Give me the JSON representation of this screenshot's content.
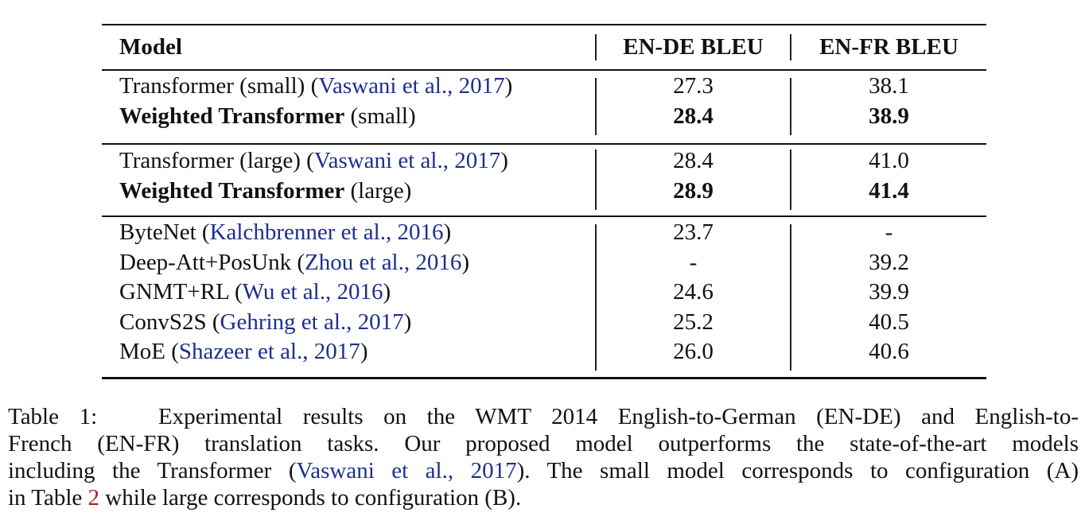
{
  "table": {
    "headers": {
      "model": "Model",
      "ende": "EN-DE BLEU",
      "enfr": "EN-FR BLEU"
    },
    "groups": [
      [
        {
          "model": "Transformer (small)",
          "model_bold": false,
          "cite": "Vaswani et al., 2017",
          "ende": "27.3",
          "enfr": "38.1",
          "values_bold": false
        },
        {
          "model": "Weighted Transformer",
          "model_bold": true,
          "suffix": "(small)",
          "ende": "28.4",
          "enfr": "38.9",
          "values_bold": true
        }
      ],
      [
        {
          "model": "Transformer (large)",
          "model_bold": false,
          "cite": "Vaswani et al., 2017",
          "ende": "28.4",
          "enfr": "41.0",
          "values_bold": false
        },
        {
          "model": "Weighted Transformer",
          "model_bold": true,
          "suffix": "(large)",
          "ende": "28.9",
          "enfr": "41.4",
          "values_bold": true
        }
      ],
      [
        {
          "model": "ByteNet",
          "model_bold": false,
          "cite": "Kalchbrenner et al., 2016",
          "ende": "23.7",
          "enfr": "-",
          "values_bold": false
        },
        {
          "model": "Deep-Att+PosUnk",
          "model_bold": false,
          "cite": "Zhou et al., 2016",
          "ende": "-",
          "enfr": "39.2",
          "values_bold": false
        },
        {
          "model": "GNMT+RL",
          "model_bold": false,
          "cite": "Wu et al., 2016",
          "ende": "24.6",
          "enfr": "39.9",
          "values_bold": false
        },
        {
          "model": "ConvS2S",
          "model_bold": false,
          "cite": "Gehring et al., 2017",
          "ende": "25.2",
          "enfr": "40.5",
          "values_bold": false
        },
        {
          "model": "MoE",
          "model_bold": false,
          "cite": "Shazeer et al., 2017",
          "ende": "26.0",
          "enfr": "40.6",
          "values_bold": false
        }
      ]
    ]
  },
  "caption": {
    "label": "Table 1:",
    "line1": "Experimental results on the WMT 2014 English-to-German (EN-DE) and English-to-",
    "line2": "French (EN-FR) translation tasks.  Our proposed model outperforms the state-of-the-art models",
    "line3_pre": "including the Transformer (",
    "line3_cite": "Vaswani et al., 2017",
    "line3_post": "). The small model corresponds to configuration (A)",
    "line4_pre": "in Table ",
    "line4_ref": "2",
    "line4_post": " while large corresponds to configuration (B)."
  },
  "colors": {
    "citation": "#1c2f8f",
    "table_ref": "#b11a1a",
    "text": "#111111"
  }
}
